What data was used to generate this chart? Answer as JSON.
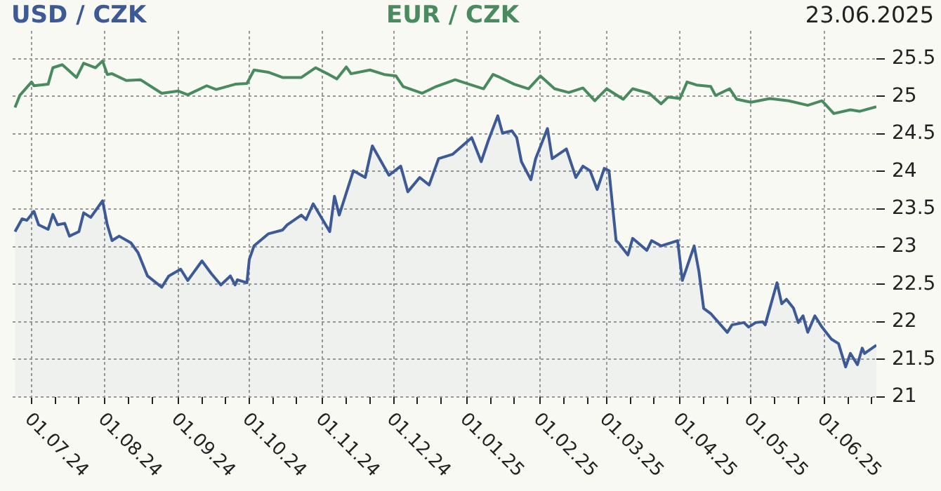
{
  "chart_data": {
    "type": "line",
    "legend": "top",
    "grid": true,
    "marker": "none",
    "annotations": [
      "23.06.2025"
    ],
    "xlim": [
      "2024-06-23",
      "2025-06-23"
    ],
    "xticks": [
      {
        "value": "2024-07-01",
        "label": "01.07.24"
      },
      {
        "value": "2024-07-11",
        "label": null
      },
      {
        "value": "2024-07-21",
        "label": null
      },
      {
        "value": "2024-08-01",
        "label": "01.08.24"
      },
      {
        "value": "2024-08-11",
        "label": null
      },
      {
        "value": "2024-08-21",
        "label": null
      },
      {
        "value": "2024-09-01",
        "label": "01.09.24"
      },
      {
        "value": "2024-09-11",
        "label": null
      },
      {
        "value": "2024-09-21",
        "label": null
      },
      {
        "value": "2024-10-01",
        "label": "01.10.24"
      },
      {
        "value": "2024-10-11",
        "label": null
      },
      {
        "value": "2024-10-21",
        "label": null
      },
      {
        "value": "2024-11-01",
        "label": "01.11.24"
      },
      {
        "value": "2024-11-11",
        "label": null
      },
      {
        "value": "2024-11-21",
        "label": null
      },
      {
        "value": "2024-12-01",
        "label": "01.12.24"
      },
      {
        "value": "2024-12-11",
        "label": null
      },
      {
        "value": "2024-12-21",
        "label": null
      },
      {
        "value": "2025-01-01",
        "label": "01.01.25"
      },
      {
        "value": "2025-01-11",
        "label": null
      },
      {
        "value": "2025-01-21",
        "label": null
      },
      {
        "value": "2025-02-01",
        "label": "01.02.25"
      },
      {
        "value": "2025-02-11",
        "label": null
      },
      {
        "value": "2025-02-21",
        "label": null
      },
      {
        "value": "2025-03-01",
        "label": "01.03.25"
      },
      {
        "value": "2025-03-11",
        "label": null
      },
      {
        "value": "2025-03-21",
        "label": null
      },
      {
        "value": "2025-04-01",
        "label": "01.04.25"
      },
      {
        "value": "2025-04-11",
        "label": null
      },
      {
        "value": "2025-04-21",
        "label": null
      },
      {
        "value": "2025-05-01",
        "label": "01.05.25"
      },
      {
        "value": "2025-05-11",
        "label": null
      },
      {
        "value": "2025-05-21",
        "label": null
      },
      {
        "value": "2025-06-01",
        "label": "01.06.25"
      },
      {
        "value": "2025-06-11",
        "label": null
      },
      {
        "value": "2025-06-21",
        "label": null
      }
    ],
    "ylim": [
      21,
      25.87
    ],
    "yticks": [
      21,
      21.5,
      22,
      22.5,
      23,
      23.5,
      24,
      24.5,
      25,
      25.5
    ],
    "series": [
      {
        "name": "USD / CZK",
        "type": "area",
        "color": "#3d5a96",
        "x": [
          "2024-06-24",
          "2024-06-27",
          "2024-06-29",
          "2024-07-02",
          "2024-07-04",
          "2024-07-08",
          "2024-07-10",
          "2024-07-12",
          "2024-07-15",
          "2024-07-17",
          "2024-07-21",
          "2024-07-23",
          "2024-07-26",
          "2024-07-31",
          "2024-08-02",
          "2024-08-04",
          "2024-08-07",
          "2024-08-12",
          "2024-08-15",
          "2024-08-19",
          "2024-08-25",
          "2024-08-28",
          "2024-09-02",
          "2024-09-05",
          "2024-09-11",
          "2024-09-15",
          "2024-09-19",
          "2024-09-23",
          "2024-09-25",
          "2024-09-26",
          "2024-09-30",
          "2024-10-01",
          "2024-10-03",
          "2024-10-09",
          "2024-10-15",
          "2024-10-17",
          "2024-10-23",
          "2024-10-25",
          "2024-10-28",
          "2024-11-04",
          "2024-11-06",
          "2024-11-08",
          "2024-11-14",
          "2024-11-19",
          "2024-11-22",
          "2024-11-29",
          "2024-12-04",
          "2024-12-07",
          "2024-12-12",
          "2024-12-16",
          "2024-12-20",
          "2024-12-26",
          "2025-01-03",
          "2025-01-07",
          "2025-01-10",
          "2025-01-14",
          "2025-01-16",
          "2025-01-20",
          "2025-01-22",
          "2025-01-24",
          "2025-01-28",
          "2025-01-30",
          "2025-02-04",
          "2025-02-06",
          "2025-02-12",
          "2025-02-16",
          "2025-02-19",
          "2025-02-22",
          "2025-02-25",
          "2025-02-28",
          "2025-03-02",
          "2025-03-05",
          "2025-03-06",
          "2025-03-10",
          "2025-03-12",
          "2025-03-18",
          "2025-03-20",
          "2025-03-24",
          "2025-03-31",
          "2025-04-02",
          "2025-04-07",
          "2025-04-09",
          "2025-04-11",
          "2025-04-14",
          "2025-04-21",
          "2025-04-23",
          "2025-04-28",
          "2025-04-30",
          "2025-05-03",
          "2025-05-06",
          "2025-05-07",
          "2025-05-12",
          "2025-05-14",
          "2025-05-16",
          "2025-05-19",
          "2025-05-21",
          "2025-05-23",
          "2025-05-25",
          "2025-05-28",
          "2025-05-31",
          "2025-06-04",
          "2025-06-07",
          "2025-06-10",
          "2025-06-12",
          "2025-06-15",
          "2025-06-17",
          "2025-06-18",
          "2025-06-23"
        ],
        "values": [
          23.2,
          23.37,
          23.35,
          23.47,
          23.29,
          23.23,
          23.43,
          23.29,
          23.31,
          23.14,
          23.2,
          23.45,
          23.39,
          23.61,
          23.29,
          23.08,
          23.14,
          23.05,
          22.92,
          22.61,
          22.46,
          22.61,
          22.7,
          22.55,
          22.81,
          22.64,
          22.49,
          22.61,
          22.49,
          22.56,
          22.52,
          22.83,
          23.01,
          23.17,
          23.22,
          23.29,
          23.42,
          23.36,
          23.57,
          23.2,
          23.67,
          23.42,
          24.01,
          23.92,
          24.34,
          23.95,
          24.07,
          23.73,
          23.92,
          23.82,
          24.17,
          24.23,
          24.45,
          24.13,
          24.41,
          24.74,
          24.51,
          24.54,
          24.45,
          24.13,
          23.89,
          24.17,
          24.57,
          24.17,
          24.3,
          23.92,
          24.07,
          24.01,
          23.76,
          24.04,
          24.01,
          23.08,
          23.05,
          22.89,
          23.11,
          22.95,
          23.08,
          23.01,
          23.08,
          22.55,
          23.01,
          22.67,
          22.18,
          22.11,
          21.86,
          21.96,
          21.99,
          21.93,
          21.99,
          22,
          21.96,
          22.52,
          22.24,
          22.3,
          22.18,
          21.99,
          22.08,
          21.86,
          22.08,
          21.93,
          21.77,
          21.71,
          21.4,
          21.58,
          21.43,
          21.65,
          21.58,
          21.69
        ]
      },
      {
        "name": "EUR / CZK",
        "type": "line",
        "color": "#4a8a5f",
        "x": [
          "2024-06-24",
          "2024-06-26",
          "2024-07-01",
          "2024-07-02",
          "2024-07-08",
          "2024-07-10",
          "2024-07-14",
          "2024-07-20",
          "2024-07-23",
          "2024-07-28",
          "2024-07-31",
          "2024-08-02",
          "2024-08-04",
          "2024-08-10",
          "2024-08-16",
          "2024-08-25",
          "2024-09-01",
          "2024-09-05",
          "2024-09-13",
          "2024-09-17",
          "2024-09-25",
          "2024-09-30",
          "2024-10-03",
          "2024-10-09",
          "2024-10-15",
          "2024-10-23",
          "2024-10-29",
          "2024-11-03",
          "2024-11-07",
          "2024-11-11",
          "2024-11-13",
          "2024-11-21",
          "2024-11-27",
          "2024-12-02",
          "2024-12-05",
          "2024-12-13",
          "2024-12-19",
          "2024-12-27",
          "2025-01-01",
          "2025-01-08",
          "2025-01-12",
          "2025-01-15",
          "2025-01-21",
          "2025-01-27",
          "2025-02-01",
          "2025-02-07",
          "2025-02-13",
          "2025-02-19",
          "2025-02-24",
          "2025-03-01",
          "2025-03-08",
          "2025-03-12",
          "2025-03-19",
          "2025-03-24",
          "2025-03-27",
          "2025-04-01",
          "2025-04-04",
          "2025-04-08",
          "2025-04-14",
          "2025-04-16",
          "2025-04-22",
          "2025-04-25",
          "2025-05-01",
          "2025-05-09",
          "2025-05-17",
          "2025-05-25",
          "2025-05-31",
          "2025-06-05",
          "2025-06-12",
          "2025-06-16",
          "2025-06-23"
        ],
        "values": [
          24.85,
          25.01,
          25.19,
          25.14,
          25.16,
          25.38,
          25.42,
          25.25,
          25.44,
          25.38,
          25.47,
          25.29,
          25.3,
          25.21,
          25.22,
          25.04,
          25.07,
          25.02,
          25.14,
          25.09,
          25.16,
          25.17,
          25.35,
          25.32,
          25.25,
          25.25,
          25.38,
          25.3,
          25.23,
          25.39,
          25.3,
          25.35,
          25.29,
          25.27,
          25.13,
          25.04,
          25.13,
          25.22,
          25.17,
          25.1,
          25.29,
          25.25,
          25.16,
          25.1,
          25.27,
          25.1,
          25.05,
          25.11,
          24.94,
          25.1,
          24.96,
          25.1,
          25.04,
          24.9,
          24.99,
          24.97,
          25.19,
          25.15,
          25.13,
          25.01,
          25.1,
          24.96,
          24.92,
          24.97,
          24.94,
          24.88,
          24.94,
          24.77,
          24.82,
          24.8,
          24.86
        ]
      }
    ]
  }
}
